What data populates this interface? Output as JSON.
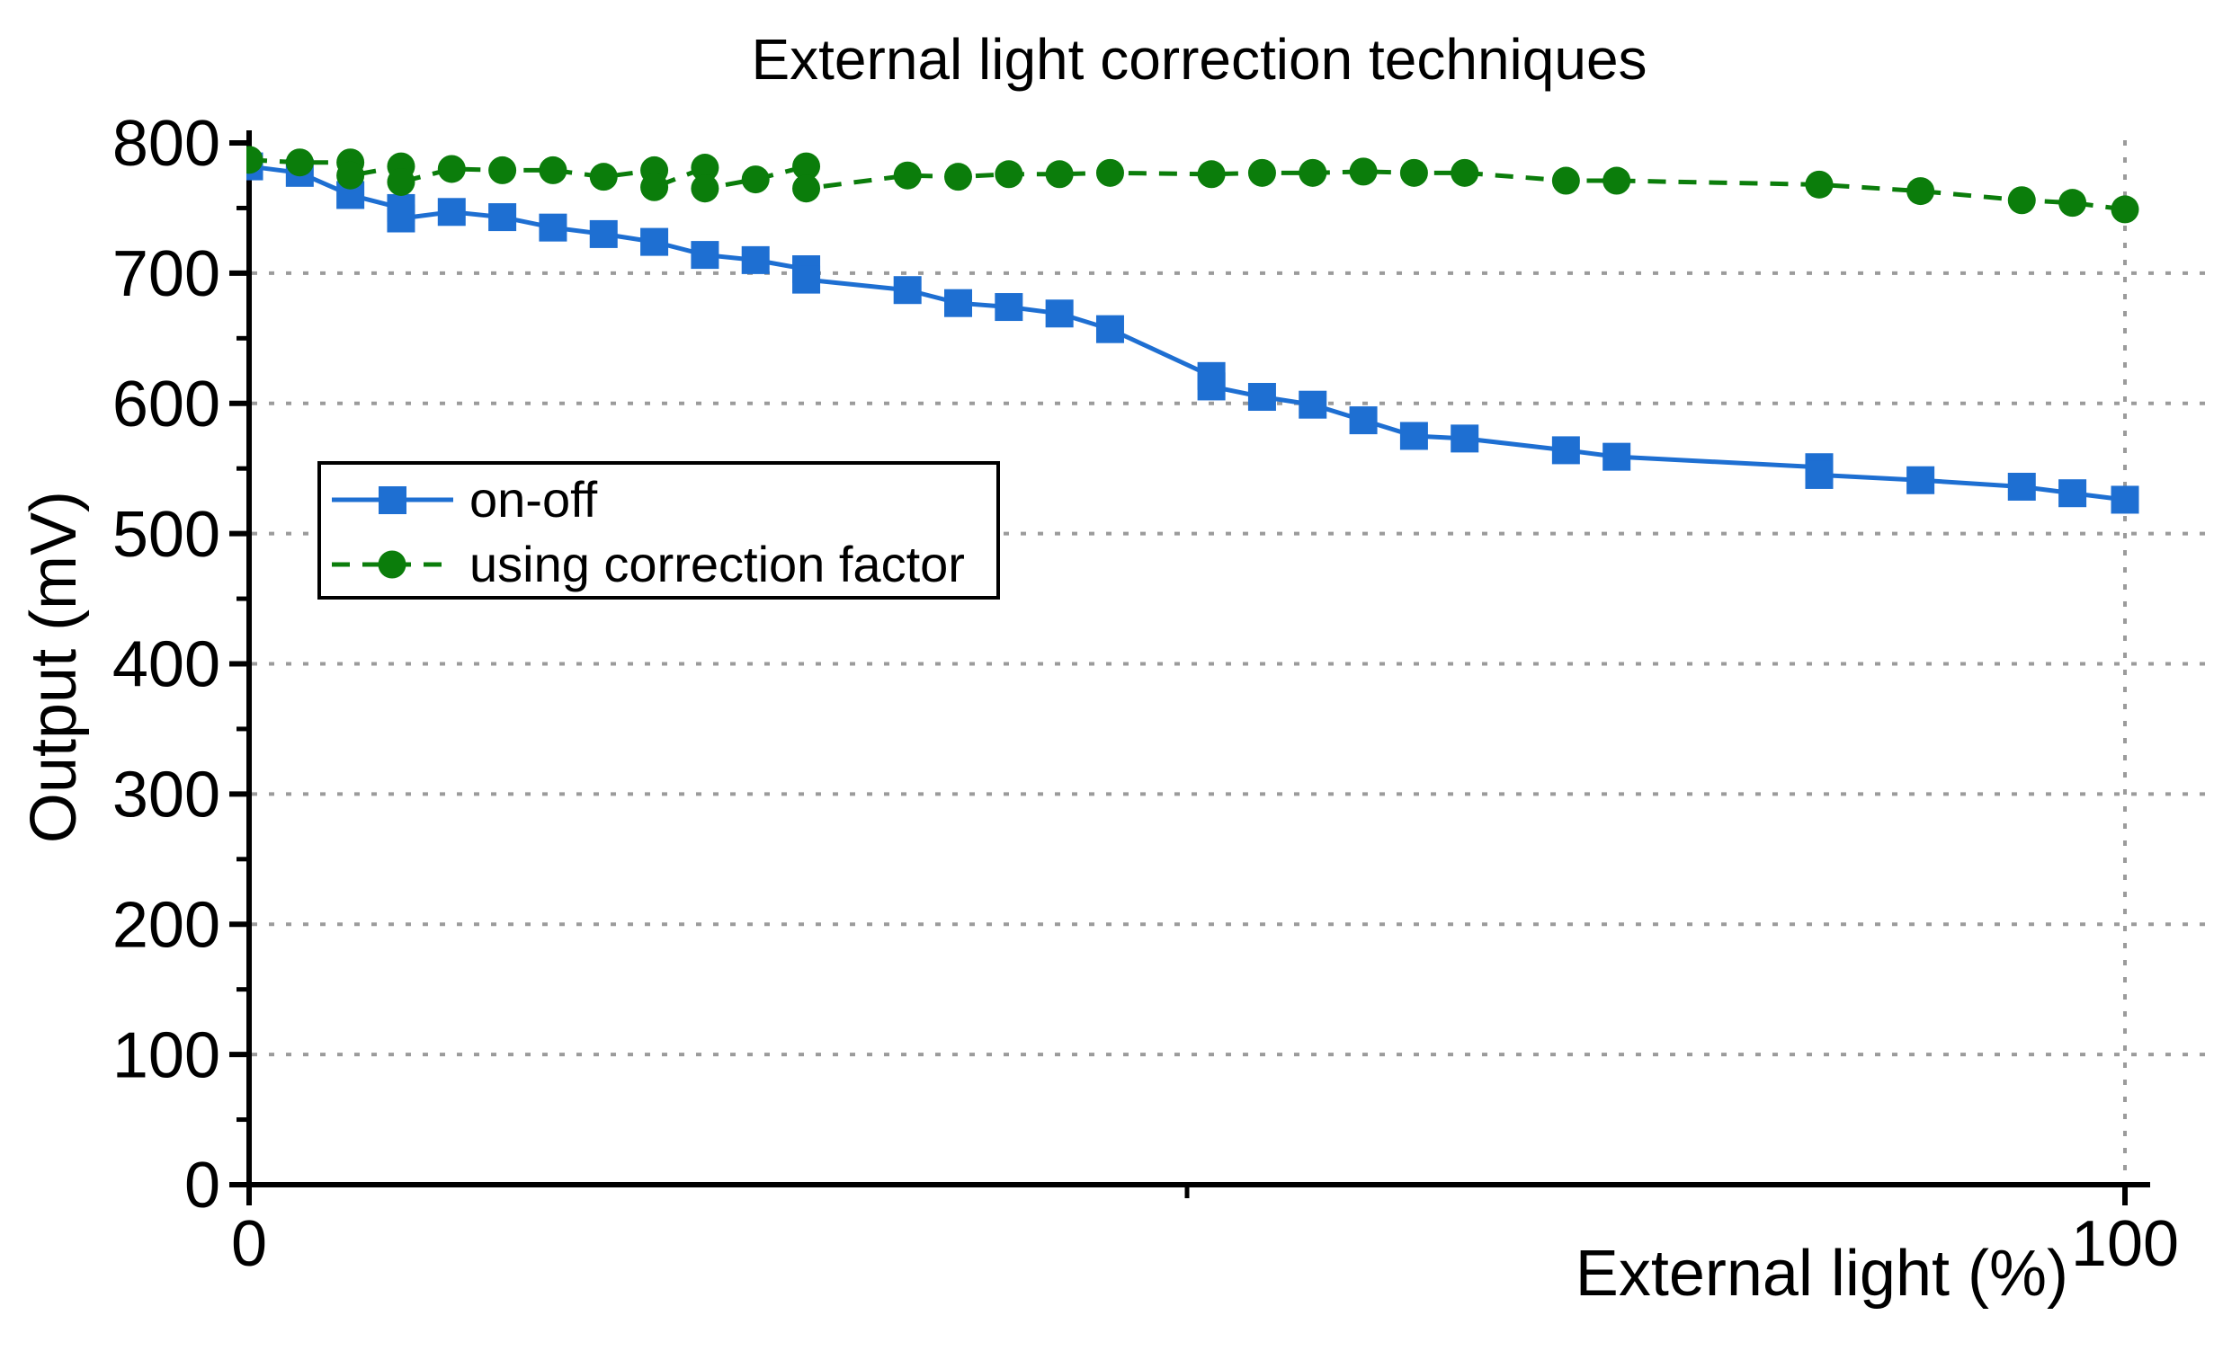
{
  "title": "External light correction techniques",
  "axes": {
    "x_label": "External light (%)",
    "y_label": "Output (mV)",
    "x_tick_labels": [
      "0",
      "100"
    ],
    "y_tick_labels": [
      "0",
      "100",
      "200",
      "300",
      "400",
      "500",
      "600",
      "700",
      "800"
    ]
  },
  "colors": {
    "blue_series": "#1e6fd2",
    "green_series": "#0b7d0b",
    "grid": "#9b9b9b",
    "axis": "#000000",
    "background": "#ffffff"
  },
  "legend": {
    "position": "upper-left-inside",
    "entries": [
      "on-off",
      "using correction factor"
    ]
  },
  "chart_data": {
    "type": "line",
    "title": "External light correction techniques",
    "xlabel": "External light (%)",
    "ylabel": "Output (mV)",
    "xlim": [
      0,
      100
    ],
    "ylim": [
      0,
      800
    ],
    "x_major_ticks": [
      0,
      100
    ],
    "x_minor_ticks": [
      50
    ],
    "y_major_ticks": [
      0,
      100,
      200,
      300,
      400,
      500,
      600,
      700,
      800
    ],
    "y_minor_ticks": [
      50,
      150,
      250,
      350,
      450,
      550,
      650,
      750
    ],
    "grid": {
      "horizontal_lines_at": [
        100,
        200,
        300,
        400,
        500,
        600,
        700
      ],
      "vertical_lines_at": [
        100
      ],
      "style": "dotted",
      "color": "#9b9b9b"
    },
    "legend_position": "upper-left-inside",
    "series": [
      {
        "name": "on-off",
        "color": "#1e6fd2",
        "marker": "square",
        "line_style": "solid",
        "points": [
          [
            0,
            782
          ],
          [
            2.7,
            777
          ],
          [
            5.4,
            760
          ],
          [
            8.1,
            750
          ],
          [
            8.1,
            742
          ],
          [
            10.8,
            747
          ],
          [
            13.5,
            743
          ],
          [
            16.2,
            735
          ],
          [
            18.9,
            730
          ],
          [
            21.6,
            724
          ],
          [
            24.3,
            714
          ],
          [
            27,
            710
          ],
          [
            29.7,
            703
          ],
          [
            29.7,
            695
          ],
          [
            35.1,
            687
          ],
          [
            37.8,
            677
          ],
          [
            40.5,
            674
          ],
          [
            43.2,
            669
          ],
          [
            45.9,
            657
          ],
          [
            51.3,
            621
          ],
          [
            51.3,
            613
          ],
          [
            54,
            605
          ],
          [
            56.7,
            599
          ],
          [
            59.4,
            587
          ],
          [
            62.1,
            575
          ],
          [
            64.8,
            573
          ],
          [
            70.2,
            564
          ],
          [
            72.9,
            559
          ],
          [
            83.7,
            551
          ],
          [
            83.7,
            545
          ],
          [
            89.1,
            541
          ],
          [
            94.5,
            536
          ],
          [
            97.2,
            531
          ],
          [
            100,
            526
          ]
        ]
      },
      {
        "name": "using correction factor",
        "color": "#0b7d0b",
        "marker": "circle",
        "line_style": "dashed",
        "points": [
          [
            0,
            787
          ],
          [
            2.7,
            785
          ],
          [
            5.4,
            785
          ],
          [
            5.4,
            775
          ],
          [
            8.1,
            782
          ],
          [
            8.1,
            770
          ],
          [
            10.8,
            780
          ],
          [
            13.5,
            779
          ],
          [
            16.2,
            779
          ],
          [
            18.9,
            774
          ],
          [
            21.6,
            779
          ],
          [
            21.6,
            766
          ],
          [
            24.3,
            781
          ],
          [
            24.3,
            765
          ],
          [
            27,
            772
          ],
          [
            29.7,
            782
          ],
          [
            29.7,
            765
          ],
          [
            35.1,
            775
          ],
          [
            37.8,
            774
          ],
          [
            40.5,
            776
          ],
          [
            43.2,
            776
          ],
          [
            45.9,
            777
          ],
          [
            51.3,
            776
          ],
          [
            54,
            777
          ],
          [
            56.7,
            777
          ],
          [
            59.4,
            778
          ],
          [
            62.1,
            777
          ],
          [
            64.8,
            777
          ],
          [
            70.2,
            771
          ],
          [
            72.9,
            771
          ],
          [
            83.7,
            768
          ],
          [
            89.1,
            763
          ],
          [
            94.5,
            756
          ],
          [
            97.2,
            754
          ],
          [
            100,
            749
          ]
        ]
      }
    ]
  }
}
